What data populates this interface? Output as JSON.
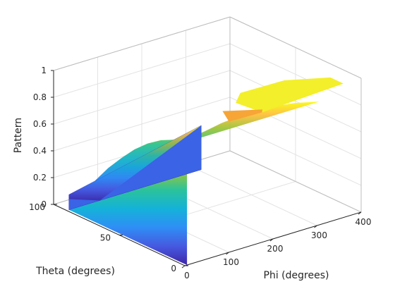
{
  "chart_data": {
    "type": "surface",
    "title": "",
    "xlabel": "Phi (degrees)",
    "ylabel": "Theta (degrees)",
    "zlabel": "Pattern",
    "xlim": [
      0,
      400
    ],
    "ylim": [
      0,
      100
    ],
    "zlim": [
      0,
      1
    ],
    "x_ticks": [
      "0",
      "100",
      "200",
      "300",
      "400"
    ],
    "y_ticks": [
      "0",
      "50",
      "100"
    ],
    "z_ticks": [
      "0",
      "0.2",
      "0.4",
      "0.6",
      "0.8",
      "1"
    ],
    "x_tick_values": [
      0,
      100,
      200,
      300,
      400
    ],
    "y_tick_values": [
      0,
      50,
      100
    ],
    "z_tick_values": [
      0,
      0.2,
      0.4,
      0.6,
      0.8,
      1
    ],
    "grid": true,
    "colormap": "parula",
    "surface": {
      "phi_range": [
        0,
        360
      ],
      "theta_range": [
        0,
        90
      ],
      "theta_samples": [
        90,
        80,
        70,
        60,
        50,
        40,
        30,
        20,
        10,
        0
      ],
      "pattern_at_theta": [
        0.0,
        0.15,
        0.31,
        0.45,
        0.57,
        0.68,
        0.77,
        0.84,
        0.89,
        0.92
      ],
      "peak_near_phi": 180,
      "peak_value": 0.97,
      "flat_region_phi": [
        300,
        360
      ],
      "flat_region_value": 1.0
    }
  }
}
